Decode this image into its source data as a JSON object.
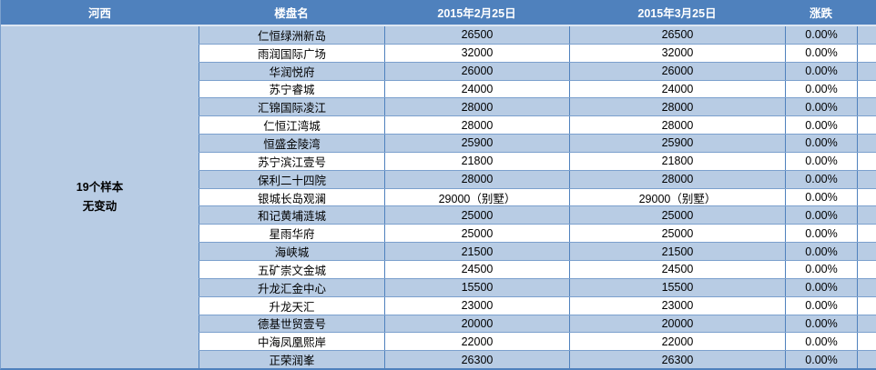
{
  "table": {
    "region_header": "河西",
    "columns": [
      "楼盘名",
      "2015年2月25日",
      "2015年3月25日",
      "涨跌"
    ],
    "summary": {
      "line1": "19个样本",
      "line2": "无变动"
    },
    "rows": [
      {
        "name": "仁恒绿洲新岛",
        "price_feb": "26500",
        "price_mar": "26500",
        "change": "0.00%"
      },
      {
        "name": "雨润国际广场",
        "price_feb": "32000",
        "price_mar": "32000",
        "change": "0.00%"
      },
      {
        "name": "华润悦府",
        "price_feb": "26000",
        "price_mar": "26000",
        "change": "0.00%"
      },
      {
        "name": "苏宁睿城",
        "price_feb": "24000",
        "price_mar": "24000",
        "change": "0.00%"
      },
      {
        "name": "汇锦国际凌江",
        "price_feb": "28000",
        "price_mar": "28000",
        "change": "0.00%"
      },
      {
        "name": "仁恒江湾城",
        "price_feb": "28000",
        "price_mar": "28000",
        "change": "0.00%"
      },
      {
        "name": "恒盛金陵湾",
        "price_feb": "25900",
        "price_mar": "25900",
        "change": "0.00%"
      },
      {
        "name": "苏宁滨江壹号",
        "price_feb": "21800",
        "price_mar": "21800",
        "change": "0.00%"
      },
      {
        "name": "保利二十四院",
        "price_feb": "28000",
        "price_mar": "28000",
        "change": "0.00%"
      },
      {
        "name": "银城长岛观澜",
        "price_feb": "29000（别墅）",
        "price_mar": "29000（别墅）",
        "change": "0.00%"
      },
      {
        "name": "和记黄埔涟城",
        "price_feb": "25000",
        "price_mar": "25000",
        "change": "0.00%"
      },
      {
        "name": "星雨华府",
        "price_feb": "25000",
        "price_mar": "25000",
        "change": "0.00%"
      },
      {
        "name": "海峡城",
        "price_feb": "21500",
        "price_mar": "21500",
        "change": "0.00%"
      },
      {
        "name": "五矿崇文金城",
        "price_feb": "24500",
        "price_mar": "24500",
        "change": "0.00%"
      },
      {
        "name": "升龙汇金中心",
        "price_feb": "15500",
        "price_mar": "15500",
        "change": "0.00%"
      },
      {
        "name": "升龙天汇",
        "price_feb": "23000",
        "price_mar": "23000",
        "change": "0.00%"
      },
      {
        "name": "德基世贸壹号",
        "price_feb": "20000",
        "price_mar": "20000",
        "change": "0.00%"
      },
      {
        "name": "中海凤凰熙岸",
        "price_feb": "22000",
        "price_mar": "22000",
        "change": "0.00%"
      },
      {
        "name": "正荣润峯",
        "price_feb": "26300",
        "price_mar": "26300",
        "change": "0.00%"
      }
    ]
  },
  "colors": {
    "header_bg": "#4f81bd",
    "header_text": "#ffffff",
    "row_alt_bg": "#b8cce4",
    "row_bg": "#ffffff",
    "border_strong": "#4f81bd",
    "border_light": "#7ba0cd",
    "header_divider": "#dde7f2",
    "text": "#000000"
  }
}
